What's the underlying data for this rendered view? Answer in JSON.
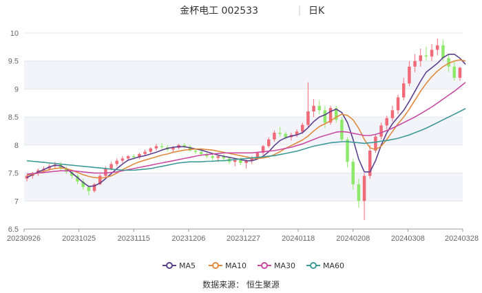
{
  "chart_data": {
    "type": "candlestick",
    "title": "金杯电工 002533",
    "period_label": "日K",
    "ylim": [
      6.5,
      10
    ],
    "y_ticks": [
      "6.5",
      "7",
      "7.5",
      "8",
      "8.5",
      "9",
      "9.5",
      "10"
    ],
    "x_ticks": [
      "20230926",
      "20231025",
      "20231115",
      "20231206",
      "20231227",
      "20240118",
      "20240208",
      "20240308",
      "20240328"
    ],
    "grid": true,
    "legend_position": "bottom",
    "source_text": "数据来源：  恒生聚源",
    "colors": {
      "up": "#f06a78",
      "down": "#8ee86a",
      "ma5": "#5b3f8c",
      "ma10": "#e08a3c",
      "ma30": "#c94aa2",
      "ma60": "#3c9a96"
    },
    "ohlc": [
      [
        7.4,
        7.46,
        7.35,
        7.45
      ],
      [
        7.45,
        7.52,
        7.4,
        7.5
      ],
      [
        7.5,
        7.58,
        7.45,
        7.55
      ],
      [
        7.55,
        7.62,
        7.5,
        7.58
      ],
      [
        7.58,
        7.66,
        7.54,
        7.62
      ],
      [
        7.62,
        7.7,
        7.58,
        7.65
      ],
      [
        7.66,
        7.7,
        7.55,
        7.58
      ],
      [
        7.58,
        7.62,
        7.48,
        7.52
      ],
      [
        7.52,
        7.56,
        7.4,
        7.45
      ],
      [
        7.45,
        7.48,
        7.3,
        7.35
      ],
      [
        7.35,
        7.4,
        7.2,
        7.25
      ],
      [
        7.25,
        7.28,
        7.1,
        7.18
      ],
      [
        7.18,
        7.32,
        7.15,
        7.3
      ],
      [
        7.3,
        7.48,
        7.28,
        7.45
      ],
      [
        7.45,
        7.62,
        7.42,
        7.58
      ],
      [
        7.58,
        7.7,
        7.55,
        7.66
      ],
      [
        7.66,
        7.76,
        7.62,
        7.72
      ],
      [
        7.72,
        7.8,
        7.68,
        7.76
      ],
      [
        7.76,
        7.82,
        7.72,
        7.8
      ],
      [
        7.8,
        7.84,
        7.74,
        7.78
      ],
      [
        7.78,
        7.86,
        7.75,
        7.84
      ],
      [
        7.84,
        7.92,
        7.8,
        7.88
      ],
      [
        7.88,
        7.96,
        7.85,
        7.94
      ],
      [
        7.94,
        8.02,
        7.9,
        7.98
      ],
      [
        7.98,
        8.04,
        7.92,
        7.96
      ],
      [
        7.96,
        8.0,
        7.88,
        7.92
      ],
      [
        7.92,
        7.98,
        7.86,
        7.95
      ],
      [
        7.95,
        8.02,
        7.92,
        8.0
      ],
      [
        8.0,
        8.04,
        7.94,
        7.97
      ],
      [
        7.97,
        8.0,
        7.88,
        7.9
      ],
      [
        7.9,
        7.94,
        7.84,
        7.88
      ],
      [
        7.88,
        7.92,
        7.8,
        7.84
      ],
      [
        7.84,
        7.88,
        7.76,
        7.8
      ],
      [
        7.8,
        7.84,
        7.72,
        7.77
      ],
      [
        7.77,
        7.82,
        7.7,
        7.8
      ],
      [
        7.8,
        7.84,
        7.72,
        7.76
      ],
      [
        7.76,
        7.8,
        7.66,
        7.7
      ],
      [
        7.7,
        7.76,
        7.62,
        7.73
      ],
      [
        7.73,
        7.78,
        7.64,
        7.68
      ],
      [
        7.68,
        7.74,
        7.58,
        7.72
      ],
      [
        7.72,
        7.8,
        7.66,
        7.78
      ],
      [
        7.78,
        7.88,
        7.74,
        7.86
      ],
      [
        7.86,
        8.0,
        7.82,
        7.98
      ],
      [
        7.98,
        8.14,
        7.95,
        8.1
      ],
      [
        8.1,
        8.26,
        8.06,
        8.22
      ],
      [
        8.22,
        8.32,
        8.15,
        8.2
      ],
      [
        8.2,
        8.24,
        8.1,
        8.14
      ],
      [
        8.14,
        8.22,
        8.08,
        8.18
      ],
      [
        8.18,
        8.28,
        8.14,
        8.24
      ],
      [
        8.24,
        8.4,
        8.2,
        8.36
      ],
      [
        8.36,
        9.12,
        8.32,
        8.6
      ],
      [
        8.6,
        8.82,
        8.5,
        8.7
      ],
      [
        8.7,
        8.8,
        8.55,
        8.62
      ],
      [
        8.62,
        8.7,
        8.3,
        8.4
      ],
      [
        8.4,
        8.7,
        8.36,
        8.66
      ],
      [
        8.66,
        8.7,
        8.4,
        8.45
      ],
      [
        8.45,
        8.5,
        8.05,
        8.1
      ],
      [
        8.1,
        8.14,
        7.6,
        7.7
      ],
      [
        7.7,
        7.76,
        7.2,
        7.3
      ],
      [
        7.3,
        7.4,
        6.88,
        7.0
      ],
      [
        7.0,
        7.5,
        6.66,
        7.45
      ],
      [
        7.45,
        8.0,
        7.4,
        7.9
      ],
      [
        7.9,
        8.2,
        7.86,
        8.15
      ],
      [
        8.15,
        8.4,
        8.1,
        8.35
      ],
      [
        8.35,
        8.52,
        8.28,
        8.48
      ],
      [
        8.48,
        8.7,
        8.42,
        8.62
      ],
      [
        8.62,
        8.9,
        8.55,
        8.85
      ],
      [
        8.85,
        9.2,
        8.8,
        9.1
      ],
      [
        9.1,
        9.5,
        9.05,
        9.4
      ],
      [
        9.4,
        9.62,
        9.3,
        9.5
      ],
      [
        9.5,
        9.72,
        9.4,
        9.6
      ],
      [
        9.6,
        9.76,
        9.5,
        9.58
      ],
      [
        9.58,
        9.8,
        9.5,
        9.7
      ],
      [
        9.7,
        9.9,
        9.6,
        9.78
      ],
      [
        9.78,
        9.88,
        9.5,
        9.55
      ],
      [
        9.55,
        9.62,
        9.3,
        9.4
      ],
      [
        9.4,
        9.5,
        9.15,
        9.2
      ],
      [
        9.2,
        9.4,
        9.15,
        9.38
      ]
    ],
    "ma5": [
      7.42,
      7.47,
      7.52,
      7.56,
      7.61,
      7.64,
      7.63,
      7.58,
      7.5,
      7.42,
      7.33,
      7.26,
      7.27,
      7.32,
      7.4,
      7.49,
      7.58,
      7.66,
      7.73,
      7.76,
      7.79,
      7.81,
      7.84,
      7.87,
      7.91,
      7.94,
      7.96,
      7.97,
      7.97,
      7.95,
      7.93,
      7.91,
      7.88,
      7.85,
      7.82,
      7.8,
      7.78,
      7.76,
      7.74,
      7.72,
      7.72,
      7.75,
      7.8,
      7.88,
      7.99,
      8.08,
      8.13,
      8.16,
      8.18,
      8.22,
      8.31,
      8.42,
      8.5,
      8.54,
      8.6,
      8.64,
      8.58,
      8.4,
      8.1,
      7.75,
      7.52,
      7.52,
      7.72,
      8.0,
      8.22,
      8.38,
      8.5,
      8.62,
      8.78,
      8.96,
      9.14,
      9.3,
      9.38,
      9.46,
      9.56,
      9.62,
      9.62,
      9.55,
      9.44
    ],
    "ma10": [
      7.46,
      7.48,
      7.5,
      7.53,
      7.56,
      7.58,
      7.59,
      7.58,
      7.55,
      7.51,
      7.47,
      7.44,
      7.42,
      7.41,
      7.42,
      7.45,
      7.5,
      7.56,
      7.61,
      7.66,
      7.7,
      7.73,
      7.76,
      7.79,
      7.82,
      7.84,
      7.87,
      7.89,
      7.91,
      7.92,
      7.93,
      7.93,
      7.92,
      7.91,
      7.89,
      7.87,
      7.85,
      7.83,
      7.81,
      7.79,
      7.77,
      7.76,
      7.77,
      7.79,
      7.83,
      7.88,
      7.94,
      7.99,
      8.04,
      8.09,
      8.16,
      8.25,
      8.33,
      8.38,
      8.43,
      8.5,
      8.55,
      8.53,
      8.45,
      8.3,
      8.1,
      7.95,
      7.92,
      7.98,
      8.1,
      8.24,
      8.38,
      8.5,
      8.64,
      8.8,
      8.96,
      9.1,
      9.22,
      9.32,
      9.4,
      9.46,
      9.5,
      9.52,
      9.5
    ],
    "ma30": [
      7.48,
      7.49,
      7.5,
      7.51,
      7.52,
      7.53,
      7.54,
      7.54,
      7.54,
      7.53,
      7.52,
      7.51,
      7.5,
      7.5,
      7.5,
      7.51,
      7.52,
      7.54,
      7.56,
      7.58,
      7.6,
      7.62,
      7.64,
      7.66,
      7.68,
      7.7,
      7.72,
      7.74,
      7.76,
      7.78,
      7.8,
      7.82,
      7.83,
      7.84,
      7.85,
      7.86,
      7.86,
      7.86,
      7.86,
      7.86,
      7.86,
      7.87,
      7.88,
      7.89,
      7.9,
      7.92,
      7.94,
      7.96,
      7.99,
      8.02,
      8.06,
      8.1,
      8.14,
      8.17,
      8.2,
      8.23,
      8.24,
      8.23,
      8.21,
      8.19,
      8.17,
      8.17,
      8.19,
      8.22,
      8.26,
      8.3,
      8.35,
      8.4,
      8.45,
      8.5,
      8.56,
      8.62,
      8.68,
      8.75,
      8.82,
      8.89,
      8.96,
      9.04,
      9.12
    ],
    "ma60": [
      7.72,
      7.71,
      7.7,
      7.69,
      7.68,
      7.67,
      7.66,
      7.65,
      7.64,
      7.63,
      7.62,
      7.61,
      7.6,
      7.59,
      7.58,
      7.57,
      7.56,
      7.55,
      7.55,
      7.55,
      7.56,
      7.57,
      7.58,
      7.6,
      7.62,
      7.64,
      7.66,
      7.68,
      7.69,
      7.7,
      7.7,
      7.7,
      7.71,
      7.71,
      7.72,
      7.72,
      7.73,
      7.74,
      7.75,
      7.76,
      7.77,
      7.78,
      7.79,
      7.8,
      7.81,
      7.83,
      7.85,
      7.87,
      7.89,
      7.92,
      7.95,
      7.98,
      8.0,
      8.02,
      8.04,
      8.05,
      8.06,
      8.06,
      8.05,
      8.04,
      8.03,
      8.04,
      8.05,
      8.07,
      8.08,
      8.1,
      8.12,
      8.15,
      8.18,
      8.22,
      8.26,
      8.3,
      8.35,
      8.4,
      8.45,
      8.5,
      8.55,
      8.6,
      8.65
    ],
    "legend": [
      {
        "key": "ma5",
        "label": "MA5"
      },
      {
        "key": "ma10",
        "label": "MA10"
      },
      {
        "key": "ma30",
        "label": "MA30"
      },
      {
        "key": "ma60",
        "label": "MA60"
      }
    ]
  }
}
